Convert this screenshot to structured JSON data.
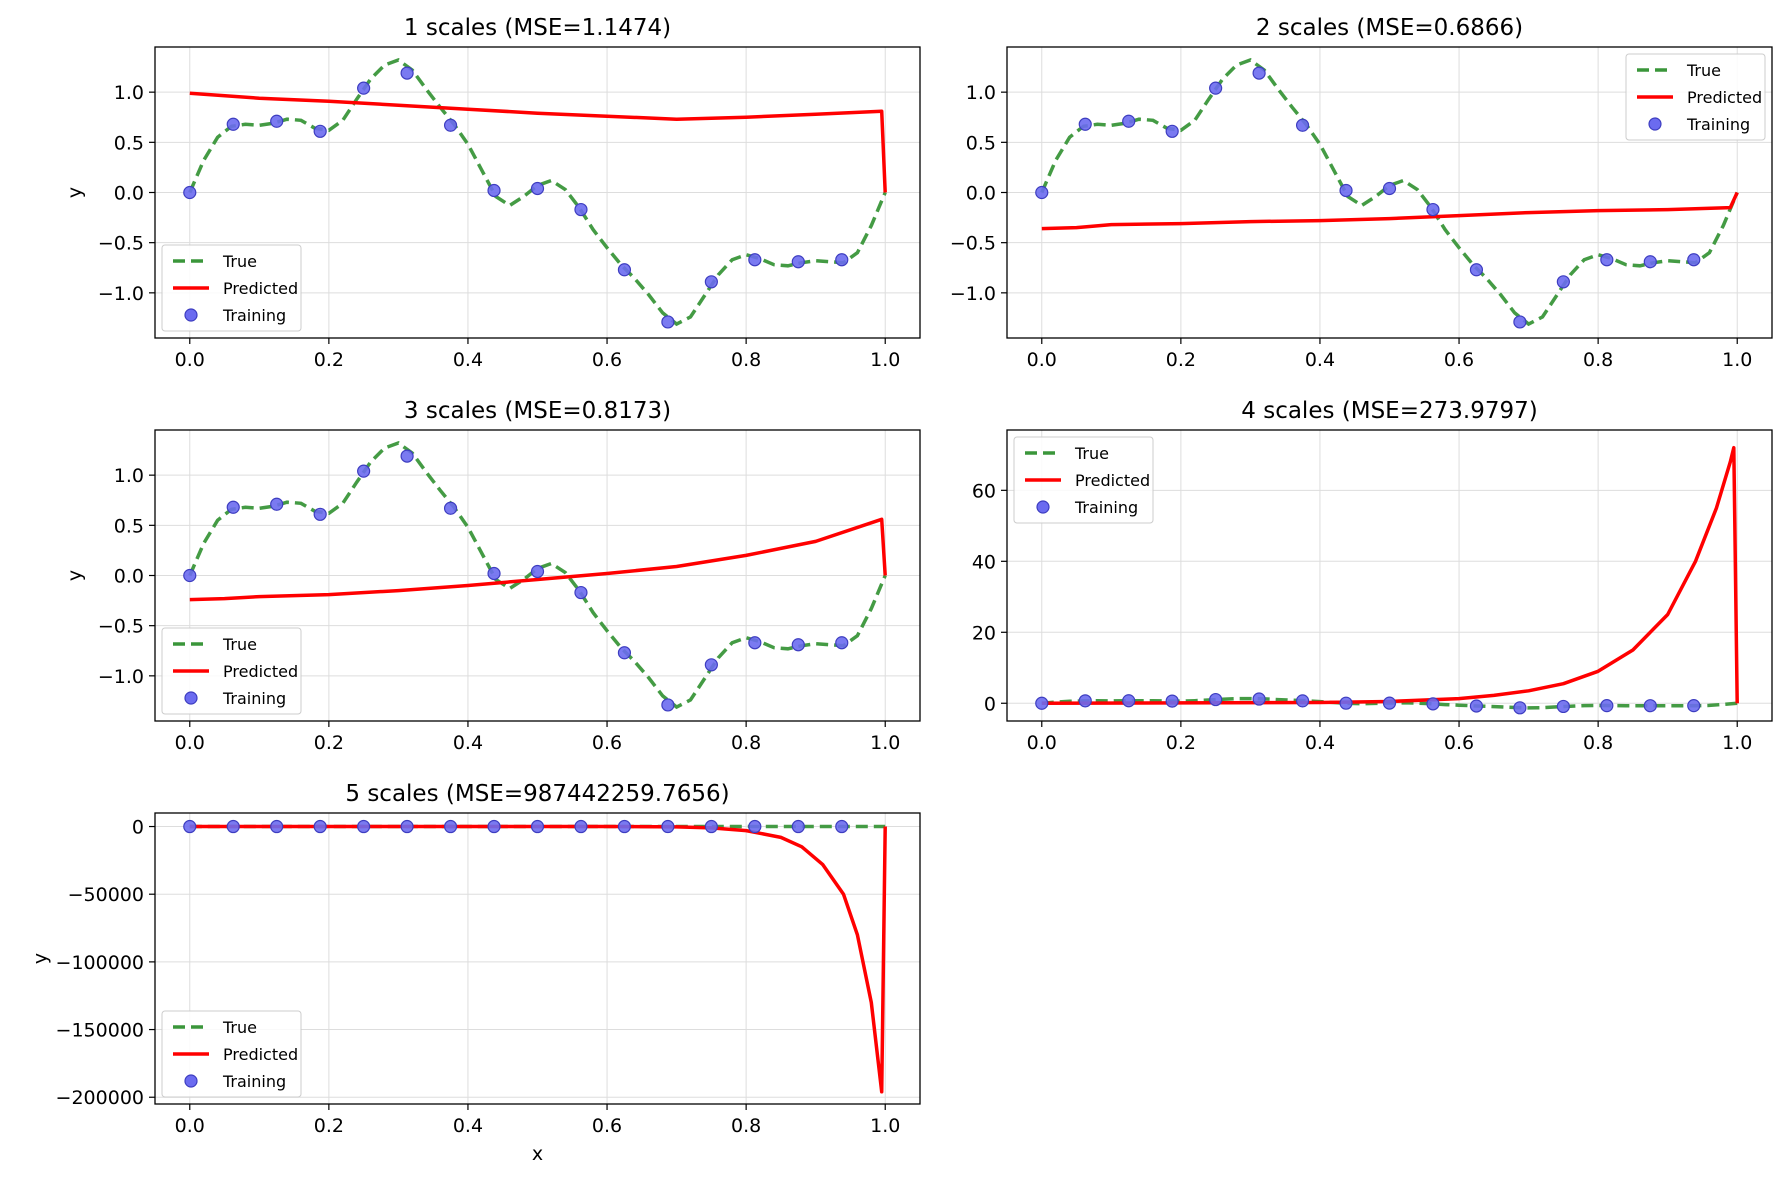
{
  "chart_data": [
    {
      "type": "line",
      "title": "1 scales (MSE=1.1474)",
      "xlabel": "",
      "ylabel": "y",
      "xlim": [
        -0.05,
        1.05
      ],
      "ylim": [
        -1.45,
        1.45
      ],
      "xticks": [
        0.0,
        0.2,
        0.4,
        0.6,
        0.8,
        1.0
      ],
      "xtick_labels": [
        "0.0",
        "0.2",
        "0.4",
        "0.6",
        "0.8",
        "1.0"
      ],
      "yticks": [
        1.0,
        0.5,
        0.0,
        -0.5,
        -1.0
      ],
      "ytick_labels": [
        "1.0",
        "0.5",
        "0.0",
        "−0.5",
        "−1.0"
      ],
      "grid": true,
      "legend": {
        "position": "lower-left",
        "entries": [
          "True",
          "Predicted",
          "Training"
        ]
      },
      "predicted": [
        [
          0.0,
          0.99
        ],
        [
          0.1,
          0.94
        ],
        [
          0.2,
          0.91
        ],
        [
          0.3,
          0.87
        ],
        [
          0.4,
          0.83
        ],
        [
          0.5,
          0.79
        ],
        [
          0.6,
          0.76
        ],
        [
          0.7,
          0.73
        ],
        [
          0.8,
          0.75
        ],
        [
          0.9,
          0.78
        ],
        [
          0.995,
          0.81
        ],
        [
          1.0,
          0.0
        ]
      ]
    },
    {
      "type": "line",
      "title": "2 scales (MSE=0.6866)",
      "xlabel": "",
      "ylabel": "",
      "xlim": [
        -0.05,
        1.05
      ],
      "ylim": [
        -1.45,
        1.45
      ],
      "xticks": [
        0.0,
        0.2,
        0.4,
        0.6,
        0.8,
        1.0
      ],
      "xtick_labels": [
        "0.0",
        "0.2",
        "0.4",
        "0.6",
        "0.8",
        "1.0"
      ],
      "yticks": [
        1.0,
        0.5,
        0.0,
        -0.5,
        -1.0
      ],
      "ytick_labels": [
        "1.0",
        "0.5",
        "0.0",
        "−0.5",
        "−1.0"
      ],
      "grid": true,
      "legend": {
        "position": "upper-right",
        "entries": [
          "True",
          "Predicted",
          "Training"
        ]
      },
      "predicted": [
        [
          0.0,
          -0.36
        ],
        [
          0.05,
          -0.35
        ],
        [
          0.1,
          -0.32
        ],
        [
          0.2,
          -0.31
        ],
        [
          0.3,
          -0.29
        ],
        [
          0.4,
          -0.28
        ],
        [
          0.5,
          -0.26
        ],
        [
          0.6,
          -0.23
        ],
        [
          0.7,
          -0.2
        ],
        [
          0.8,
          -0.18
        ],
        [
          0.9,
          -0.17
        ],
        [
          0.99,
          -0.15
        ],
        [
          1.0,
          0.0
        ]
      ]
    },
    {
      "type": "line",
      "title": "3 scales (MSE=0.8173)",
      "xlabel": "",
      "ylabel": "y",
      "xlim": [
        -0.05,
        1.05
      ],
      "ylim": [
        -1.45,
        1.45
      ],
      "xticks": [
        0.0,
        0.2,
        0.4,
        0.6,
        0.8,
        1.0
      ],
      "xtick_labels": [
        "0.0",
        "0.2",
        "0.4",
        "0.6",
        "0.8",
        "1.0"
      ],
      "yticks": [
        1.0,
        0.5,
        0.0,
        -0.5,
        -1.0
      ],
      "ytick_labels": [
        "1.0",
        "0.5",
        "0.0",
        "−0.5",
        "−1.0"
      ],
      "grid": true,
      "legend": {
        "position": "lower-left",
        "entries": [
          "True",
          "Predicted",
          "Training"
        ]
      },
      "predicted": [
        [
          0.0,
          -0.24
        ],
        [
          0.05,
          -0.23
        ],
        [
          0.1,
          -0.21
        ],
        [
          0.2,
          -0.19
        ],
        [
          0.3,
          -0.15
        ],
        [
          0.4,
          -0.1
        ],
        [
          0.5,
          -0.04
        ],
        [
          0.6,
          0.02
        ],
        [
          0.7,
          0.09
        ],
        [
          0.8,
          0.2
        ],
        [
          0.9,
          0.34
        ],
        [
          0.995,
          0.56
        ],
        [
          1.0,
          0.0
        ]
      ]
    },
    {
      "type": "line",
      "title": "4 scales (MSE=273.9797)",
      "xlabel": "",
      "ylabel": "",
      "xlim": [
        -0.05,
        1.05
      ],
      "ylim": [
        -5,
        77
      ],
      "xticks": [
        0.0,
        0.2,
        0.4,
        0.6,
        0.8,
        1.0
      ],
      "xtick_labels": [
        "0.0",
        "0.2",
        "0.4",
        "0.6",
        "0.8",
        "1.0"
      ],
      "yticks": [
        60,
        40,
        20,
        0
      ],
      "ytick_labels": [
        "60",
        "40",
        "20",
        "0"
      ],
      "grid": true,
      "legend": {
        "position": "upper-left",
        "entries": [
          "True",
          "Predicted",
          "Training"
        ]
      },
      "predicted": [
        [
          0.0,
          0.0
        ],
        [
          0.2,
          0.1
        ],
        [
          0.4,
          0.2
        ],
        [
          0.5,
          0.5
        ],
        [
          0.6,
          1.3
        ],
        [
          0.65,
          2.2
        ],
        [
          0.7,
          3.5
        ],
        [
          0.75,
          5.5
        ],
        [
          0.8,
          9.0
        ],
        [
          0.85,
          15.0
        ],
        [
          0.9,
          25.0
        ],
        [
          0.94,
          40.0
        ],
        [
          0.97,
          55.0
        ],
        [
          0.99,
          68.0
        ],
        [
          0.995,
          72.0
        ],
        [
          1.0,
          0.0
        ]
      ]
    },
    {
      "type": "line",
      "title": "5 scales (MSE=987442259.7656)",
      "xlabel": "x",
      "ylabel": "y",
      "xlim": [
        -0.05,
        1.05
      ],
      "ylim": [
        -205000,
        10000
      ],
      "xticks": [
        0.0,
        0.2,
        0.4,
        0.6,
        0.8,
        1.0
      ],
      "xtick_labels": [
        "0.0",
        "0.2",
        "0.4",
        "0.6",
        "0.8",
        "1.0"
      ],
      "yticks": [
        0,
        -50000,
        -100000,
        -150000,
        -200000
      ],
      "ytick_labels": [
        "0",
        "−50000",
        "−100000",
        "−150000",
        "−200000"
      ],
      "grid": true,
      "legend": {
        "position": "lower-left",
        "entries": [
          "True",
          "Predicted",
          "Training"
        ]
      },
      "predicted": [
        [
          0.0,
          0
        ],
        [
          0.6,
          0
        ],
        [
          0.7,
          -300
        ],
        [
          0.75,
          -1000
        ],
        [
          0.8,
          -3000
        ],
        [
          0.85,
          -8000
        ],
        [
          0.88,
          -15000
        ],
        [
          0.91,
          -28000
        ],
        [
          0.94,
          -50000
        ],
        [
          0.96,
          -80000
        ],
        [
          0.98,
          -130000
        ],
        [
          0.995,
          -196000
        ],
        [
          1.0,
          0
        ]
      ]
    }
  ],
  "shared": {
    "legend_labels": [
      "True",
      "Predicted",
      "Training"
    ],
    "training": [
      [
        0.0,
        0.0
      ],
      [
        0.0625,
        0.68
      ],
      [
        0.125,
        0.71
      ],
      [
        0.1875,
        0.61
      ],
      [
        0.25,
        1.04
      ],
      [
        0.3125,
        1.19
      ],
      [
        0.375,
        0.67
      ],
      [
        0.4375,
        0.02
      ],
      [
        0.5,
        0.04
      ],
      [
        0.5625,
        -0.17
      ],
      [
        0.625,
        -0.77
      ],
      [
        0.6875,
        -1.29
      ],
      [
        0.75,
        -0.89
      ],
      [
        0.8125,
        -0.67
      ],
      [
        0.875,
        -0.69
      ],
      [
        0.9375,
        -0.67
      ]
    ],
    "true_curve": [
      [
        0.0,
        0.0
      ],
      [
        0.02,
        0.32
      ],
      [
        0.04,
        0.55
      ],
      [
        0.06,
        0.66
      ],
      [
        0.08,
        0.68
      ],
      [
        0.1,
        0.67
      ],
      [
        0.12,
        0.69
      ],
      [
        0.14,
        0.73
      ],
      [
        0.16,
        0.72
      ],
      [
        0.18,
        0.64
      ],
      [
        0.2,
        0.62
      ],
      [
        0.22,
        0.72
      ],
      [
        0.24,
        0.93
      ],
      [
        0.26,
        1.13
      ],
      [
        0.28,
        1.27
      ],
      [
        0.3,
        1.32
      ],
      [
        0.32,
        1.22
      ],
      [
        0.34,
        1.03
      ],
      [
        0.36,
        0.85
      ],
      [
        0.38,
        0.68
      ],
      [
        0.4,
        0.48
      ],
      [
        0.42,
        0.22
      ],
      [
        0.44,
        -0.04
      ],
      [
        0.46,
        -0.13
      ],
      [
        0.48,
        -0.04
      ],
      [
        0.5,
        0.07
      ],
      [
        0.52,
        0.12
      ],
      [
        0.54,
        0.03
      ],
      [
        0.56,
        -0.15
      ],
      [
        0.58,
        -0.37
      ],
      [
        0.6,
        -0.55
      ],
      [
        0.62,
        -0.72
      ],
      [
        0.64,
        -0.86
      ],
      [
        0.66,
        -1.02
      ],
      [
        0.68,
        -1.2
      ],
      [
        0.7,
        -1.31
      ],
      [
        0.72,
        -1.24
      ],
      [
        0.74,
        -1.03
      ],
      [
        0.76,
        -0.82
      ],
      [
        0.78,
        -0.67
      ],
      [
        0.8,
        -0.62
      ],
      [
        0.82,
        -0.66
      ],
      [
        0.84,
        -0.72
      ],
      [
        0.86,
        -0.73
      ],
      [
        0.88,
        -0.7
      ],
      [
        0.9,
        -0.68
      ],
      [
        0.92,
        -0.69
      ],
      [
        0.94,
        -0.7
      ],
      [
        0.96,
        -0.6
      ],
      [
        0.98,
        -0.33
      ],
      [
        1.0,
        0.0
      ]
    ],
    "colors": {
      "true": "#3a963a",
      "predicted": "#ff0000",
      "training": "#6b6bf0",
      "training_edge": "#3d3dc0",
      "grid": "#dddddd"
    }
  }
}
